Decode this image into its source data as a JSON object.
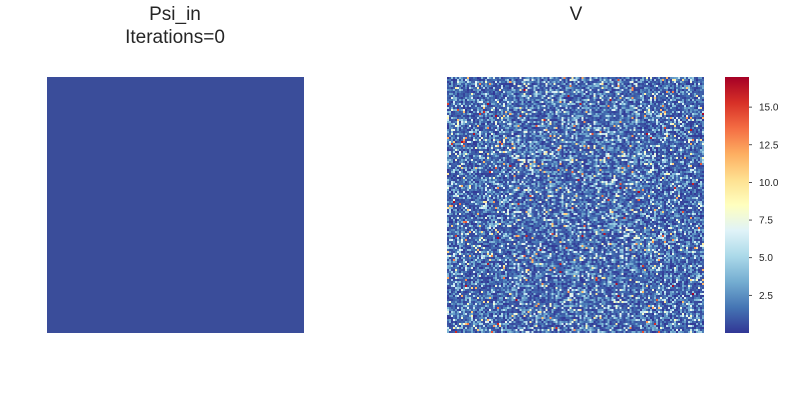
{
  "chart_data": [
    {
      "type": "heatmap",
      "title": "Psi_in",
      "subtitle": "Iterations=0",
      "grid_rows": 128,
      "grid_cols": 128,
      "values": "uniform",
      "uniform_value": 0,
      "uniform_color": "#3a4d9a",
      "axes_visible": false
    },
    {
      "type": "heatmap",
      "title": "V",
      "grid_rows": 128,
      "grid_cols": 128,
      "values": "random_noise",
      "value_range": [
        0,
        17
      ],
      "colormap": "RdYlBu_r",
      "axes_visible": false,
      "colorbar": {
        "ticks": [
          2.5,
          5.0,
          7.5,
          10.0,
          12.5,
          15.0
        ],
        "tick_labels": [
          "2.5",
          "5.0",
          "7.5",
          "10.0",
          "12.5",
          "15.0"
        ],
        "vmin": 0,
        "vmax": 17
      }
    }
  ],
  "colormap_stops": [
    "#313695",
    "#4575b4",
    "#74add1",
    "#abd9e9",
    "#e0f3f8",
    "#ffffbf",
    "#fee090",
    "#fdae61",
    "#f46d43",
    "#d73027",
    "#a50026"
  ]
}
